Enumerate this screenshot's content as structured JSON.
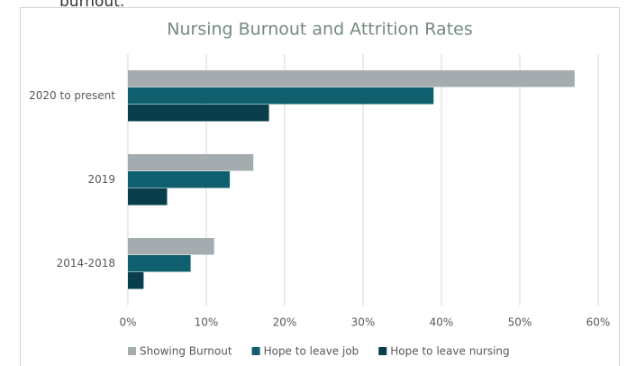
{
  "page_fragment": "burnout.",
  "chart_data": {
    "type": "hbar",
    "title": "Nursing Burnout and Attrition Rates",
    "categories": [
      "2020 to present",
      "2019",
      "2014-2018"
    ],
    "series": [
      {
        "name": "Showing Burnout",
        "color": "#a5acaf",
        "values": [
          57,
          16,
          11
        ]
      },
      {
        "name": "Hope to leave job",
        "color": "#0f5f6e",
        "values": [
          39,
          13,
          8
        ]
      },
      {
        "name": "Hope to leave nursing",
        "color": "#093f4c",
        "values": [
          18,
          5,
          2
        ]
      }
    ],
    "xlim": [
      0,
      60
    ],
    "xticks": [
      {
        "value": 0,
        "label": "0%"
      },
      {
        "value": 10,
        "label": "10%"
      },
      {
        "value": 20,
        "label": "20%"
      },
      {
        "value": 30,
        "label": "30%"
      },
      {
        "value": 40,
        "label": "40%"
      },
      {
        "value": 50,
        "label": "50%"
      },
      {
        "value": 60,
        "label": "60%"
      }
    ],
    "grid": true,
    "legend": "bottom"
  }
}
